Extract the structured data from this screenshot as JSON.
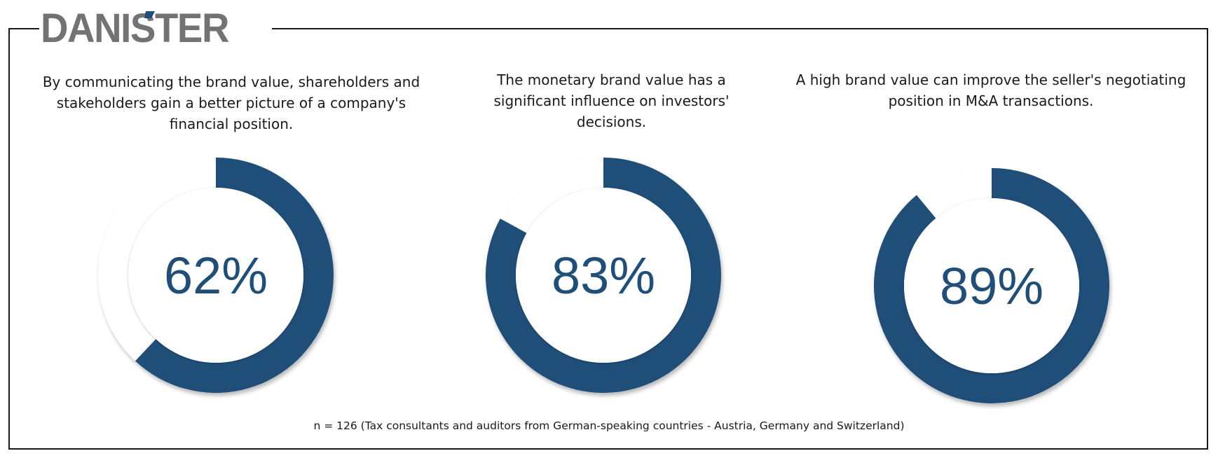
{
  "logo": {
    "text": "DANISTER",
    "color": "#737373",
    "accent_color": "#1f4e79"
  },
  "chart_data": {
    "type": "donut",
    "charts": [
      {
        "caption": "By communicating the brand value, shareholders and stakeholders gain a better picture of a company's financial position.",
        "value": 62,
        "label": "62%"
      },
      {
        "caption": "The monetary brand value has a significant influence on investors' decisions.",
        "value": 83,
        "label": "83%"
      },
      {
        "caption": "A high brand value can improve the seller's negotiating position in M&A transactions.",
        "value": 89,
        "label": "89%"
      }
    ],
    "footnote": "n = 126 (Tax consultants and auditors from German-speaking countries - Austria, Germany and Switzerland)",
    "colors": {
      "filled": "#1f4e79",
      "remainder": "#ffffff",
      "label": "#1f4e79"
    }
  }
}
